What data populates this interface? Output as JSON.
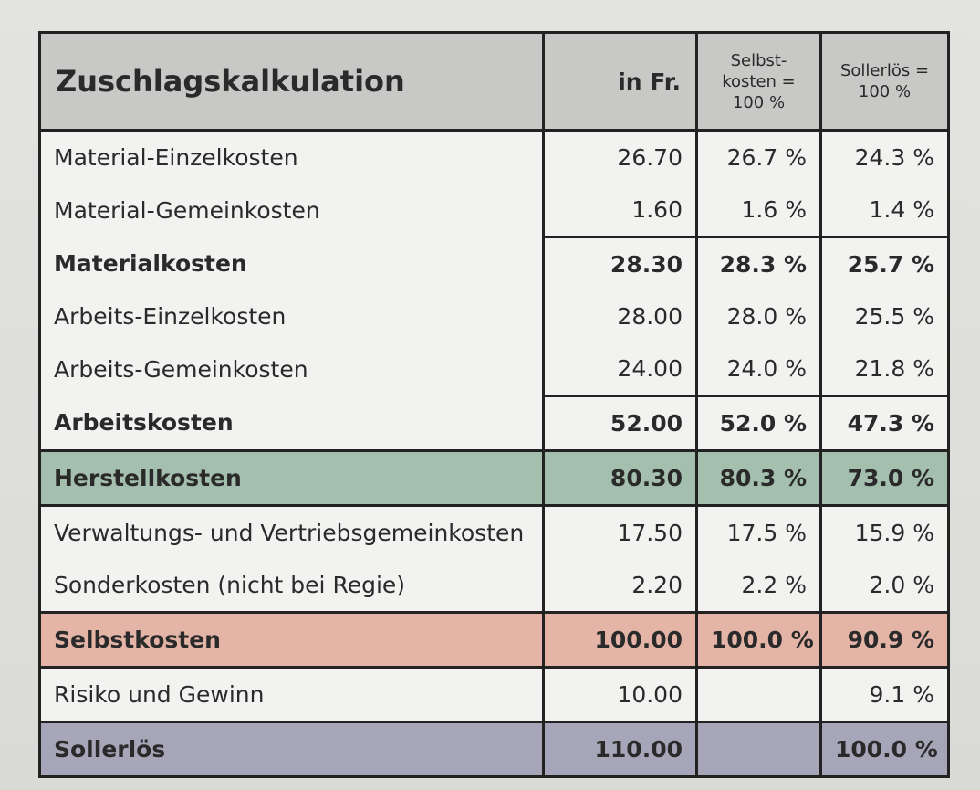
{
  "table": {
    "title": "Zuschlagskalkulation",
    "col_money": "in Fr.",
    "col_selbst": "Selbst-\nkosten =\n100 %",
    "col_soll": "Sollerlös =\n100 %",
    "rows": [
      {
        "label": "Material-Einzelkosten",
        "fr": "26.70",
        "selbst": "26.7 %",
        "soll": "24.3 %"
      },
      {
        "label": "Material-Gemeinkosten",
        "fr": "1.60",
        "selbst": "1.6 %",
        "soll": "1.4 %"
      },
      {
        "label": "Materialkosten",
        "fr": "28.30",
        "selbst": "28.3 %",
        "soll": "25.7 %"
      },
      {
        "label": "Arbeits-Einzelkosten",
        "fr": "28.00",
        "selbst": "28.0 %",
        "soll": "25.5 %"
      },
      {
        "label": "Arbeits-Gemeinkosten",
        "fr": "24.00",
        "selbst": "24.0 %",
        "soll": "21.8 %"
      },
      {
        "label": "Arbeitskosten",
        "fr": "52.00",
        "selbst": "52.0 %",
        "soll": "47.3 %"
      },
      {
        "label": "Herstellkosten",
        "fr": "80.30",
        "selbst": "80.3 %",
        "soll": "73.0 %"
      },
      {
        "label": "Verwaltungs- und Vertriebsgemeinkosten",
        "fr": "17.50",
        "selbst": "17.5 %",
        "soll": "15.9 %"
      },
      {
        "label": "Sonderkosten (nicht bei Regie)",
        "fr": "2.20",
        "selbst": "2.2 %",
        "soll": "2.0 %"
      },
      {
        "label": "Selbstkosten",
        "fr": "100.00",
        "selbst": "100.0 %",
        "soll": "90.9 %"
      },
      {
        "label": "Risiko und Gewinn",
        "fr": "10.00",
        "selbst": "",
        "soll": "9.1 %"
      },
      {
        "label": "Sollerlös",
        "fr": "110.00",
        "selbst": "",
        "soll": "100.0 %"
      }
    ]
  },
  "colors": {
    "header": "#c8c8c7",
    "herstellkosten": "#a4bfae",
    "selbstkosten": "#e4b5a7",
    "sollerloes": "#a6a6b8"
  }
}
